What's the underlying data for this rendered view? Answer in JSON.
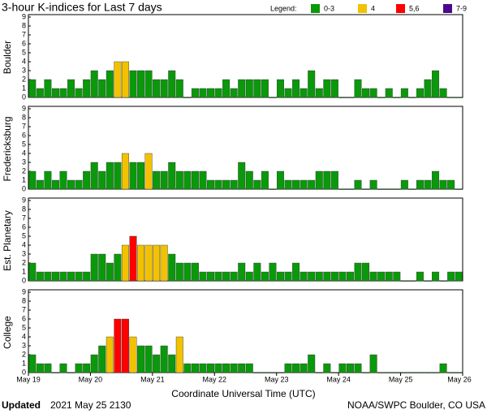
{
  "header": {
    "title": "3-hour K-indices for Last 7 days",
    "legend_title": "Legend:",
    "legend": [
      {
        "label": "0-3",
        "color": "#0a990a"
      },
      {
        "label": "4",
        "color": "#f2c200"
      },
      {
        "label": "5,6",
        "color": "#ff0000"
      },
      {
        "label": "7-9",
        "color": "#4b0a8c"
      }
    ]
  },
  "x_axis": {
    "ticks": [
      "May 19",
      "May 20",
      "May 21",
      "May 22",
      "May 23",
      "May 24",
      "May 25",
      "May 26"
    ],
    "label": "Coordinate Universal Time (UTC)"
  },
  "footer": {
    "updated_label": "Updated",
    "updated": "2021 May 25 2130",
    "source": "NOAA/SWPC Boulder, CO USA"
  },
  "chart_data": [
    {
      "type": "bar",
      "ylabel": "Boulder",
      "ylim": [
        0,
        9
      ],
      "yticks": [
        0,
        1,
        2,
        3,
        4,
        5,
        6,
        7,
        8,
        9
      ],
      "values": [
        2,
        1,
        2,
        1,
        1,
        2,
        1,
        2,
        3,
        2,
        3,
        4,
        4,
        3,
        3,
        3,
        2,
        2,
        3,
        2,
        0,
        1,
        1,
        1,
        1,
        2,
        1,
        2,
        2,
        2,
        2,
        0,
        2,
        1,
        2,
        1,
        3,
        1,
        2,
        2,
        0,
        0,
        2,
        1,
        1,
        0,
        1,
        0,
        1,
        0,
        1,
        2,
        3,
        1,
        0,
        0
      ]
    },
    {
      "type": "bar",
      "ylabel": "Fredericksburg",
      "ylim": [
        0,
        9
      ],
      "yticks": [
        0,
        1,
        2,
        3,
        4,
        5,
        6,
        7,
        8,
        9
      ],
      "values": [
        2,
        1,
        2,
        1,
        2,
        1,
        1,
        2,
        3,
        2,
        3,
        3,
        4,
        3,
        3,
        4,
        2,
        2,
        3,
        2,
        2,
        2,
        2,
        1,
        1,
        1,
        1,
        3,
        2,
        1,
        2,
        0,
        2,
        1,
        1,
        1,
        1,
        2,
        2,
        2,
        0,
        0,
        1,
        0,
        1,
        0,
        0,
        0,
        1,
        0,
        1,
        1,
        2,
        1,
        1,
        0
      ]
    },
    {
      "type": "bar",
      "ylabel": "Est. Planetary",
      "ylim": [
        0,
        9
      ],
      "yticks": [
        0,
        1,
        2,
        3,
        4,
        5,
        6,
        7,
        8,
        9
      ],
      "values": [
        2,
        1,
        1,
        1,
        1,
        1,
        1,
        1,
        3,
        3,
        2,
        3,
        4,
        5,
        4,
        4,
        4,
        4,
        3,
        2,
        2,
        2,
        1,
        1,
        1,
        1,
        1,
        2,
        1,
        2,
        1,
        2,
        1,
        1,
        2,
        1,
        1,
        1,
        1,
        1,
        1,
        1,
        2,
        2,
        1,
        1,
        1,
        1,
        0,
        0,
        1,
        0,
        1,
        0,
        1,
        1
      ]
    },
    {
      "type": "bar",
      "ylabel": "College",
      "ylim": [
        0,
        9
      ],
      "yticks": [
        0,
        1,
        2,
        3,
        4,
        5,
        6,
        7,
        8,
        9
      ],
      "values": [
        2,
        1,
        1,
        0,
        1,
        0,
        1,
        1,
        2,
        3,
        4,
        6,
        6,
        4,
        3,
        3,
        2,
        3,
        2,
        4,
        1,
        1,
        1,
        1,
        1,
        1,
        1,
        1,
        1,
        0,
        0,
        0,
        0,
        1,
        1,
        1,
        2,
        0,
        1,
        0,
        1,
        1,
        1,
        0,
        2,
        0,
        0,
        0,
        0,
        0,
        0,
        0,
        0,
        1,
        0,
        0
      ]
    }
  ]
}
